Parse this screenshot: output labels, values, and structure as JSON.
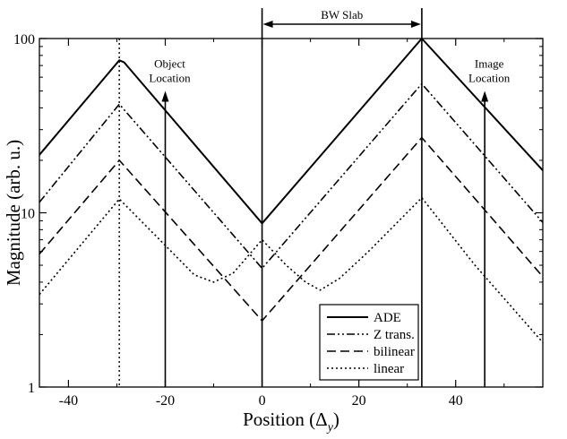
{
  "chart_data": {
    "type": "line",
    "title": "",
    "xlabel": "Position (Δy)",
    "xlabel_main": "Position (Δ",
    "xlabel_sub": "y",
    "xlabel_close": ")",
    "ylabel": "Magnitude (arb. u.)",
    "xlim": [
      -46,
      58
    ],
    "ylim": [
      1,
      100
    ],
    "y_scale": "log",
    "grid": false,
    "legend_position": "bottom-right",
    "x_ticks": [
      {
        "value": -40,
        "label": "-40"
      },
      {
        "value": -20,
        "label": "-20"
      },
      {
        "value": 0,
        "label": "0"
      },
      {
        "value": 20,
        "label": "20"
      },
      {
        "value": 40,
        "label": "40"
      }
    ],
    "y_ticks": [
      {
        "value": 1,
        "label": "1"
      },
      {
        "value": 10,
        "label": "10"
      },
      {
        "value": 100,
        "label": "100"
      }
    ],
    "series": [
      {
        "name": "ADE",
        "dash": "solid",
        "points": [
          [
            -46,
            21.5
          ],
          [
            -29.5,
            75
          ],
          [
            -28.5,
            73
          ],
          [
            0,
            8.7
          ],
          [
            33,
            100
          ],
          [
            58,
            17.5
          ]
        ]
      },
      {
        "name": "Z trans.",
        "dash": "dashdotdot",
        "points": [
          [
            -46,
            11.5
          ],
          [
            -29.5,
            42
          ],
          [
            0,
            4.8
          ],
          [
            33,
            55
          ],
          [
            58,
            8.8
          ]
        ]
      },
      {
        "name": "bilinear",
        "dash": "dashed",
        "points": [
          [
            -46,
            5.8
          ],
          [
            -29.5,
            20
          ],
          [
            0,
            2.4
          ],
          [
            33,
            27
          ],
          [
            58,
            4.3
          ]
        ]
      },
      {
        "name": "linear",
        "dash": "dotted",
        "points": [
          [
            -46,
            3.4
          ],
          [
            -29.5,
            12
          ],
          [
            -20,
            6.5
          ],
          [
            -14,
            4.4
          ],
          [
            -10,
            4.0
          ],
          [
            -6,
            4.5
          ],
          [
            0,
            7.0
          ],
          [
            5,
            5.0
          ],
          [
            9,
            4.0
          ],
          [
            12,
            3.6
          ],
          [
            16,
            4.2
          ],
          [
            22,
            6.0
          ],
          [
            33,
            12.2
          ],
          [
            44,
            5.0
          ],
          [
            58,
            1.8
          ]
        ]
      }
    ],
    "reference_lines": [
      {
        "x": -29.5,
        "style": "dotted"
      },
      {
        "x": 0,
        "style": "solid"
      },
      {
        "x": 33,
        "style": "solid"
      }
    ],
    "annotations": [
      {
        "id": "object",
        "line1": "Object",
        "line2": "Location",
        "x": -20,
        "y_from": 1,
        "y_to": 50
      },
      {
        "id": "image",
        "line1": "Image",
        "line2": "Location",
        "x": 46,
        "y_from": 1,
        "y_to": 50
      }
    ],
    "slab": {
      "label": "BW Slab",
      "x_start": 0,
      "x_end": 33
    }
  }
}
